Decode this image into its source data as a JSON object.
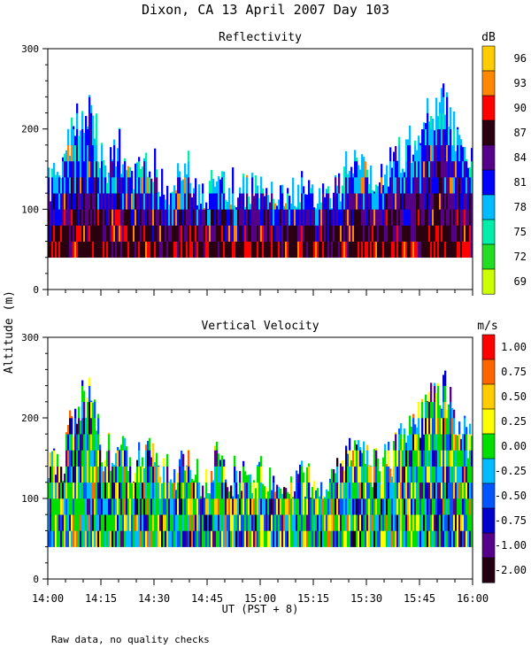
{
  "title": "Dixon, CA 13 April 2007  Day 103",
  "ylabel": "Altitude (m)",
  "xlabel": "UT  (PST + 8)",
  "footnote": "Raw data, no quality checks",
  "x_ticks": [
    "14:00",
    "14:15",
    "14:30",
    "14:45",
    "15:00",
    "15:15",
    "15:30",
    "15:45",
    "16:00"
  ],
  "chart_data": [
    {
      "type": "heatmap",
      "title": "Reflectivity",
      "colorbar_unit": "dB",
      "colorbar_labels": [
        "96",
        "93",
        "90",
        "87",
        "84",
        "81",
        "78",
        "75",
        "72",
        "69"
      ],
      "colorbar_colors": [
        "#ffcc00",
        "#ff8800",
        "#ff0000",
        "#2a0010",
        "#550088",
        "#0000ff",
        "#00bbff",
        "#00eeaa",
        "#22dd22",
        "#ccff00"
      ],
      "ylim": [
        0,
        300
      ],
      "y_ticks": [
        "300",
        "200",
        "100",
        "0"
      ],
      "xlim": [
        "14:00",
        "16:00"
      ],
      "echo_base_m": 40,
      "echo_top_profile_m": [
        140,
        160,
        230,
        240,
        160,
        190,
        140,
        180,
        150,
        140,
        160,
        120,
        160,
        140,
        130,
        140,
        120,
        120,
        140,
        120,
        120,
        160,
        180,
        150,
        160,
        180,
        200,
        230,
        250,
        200,
        180
      ]
    },
    {
      "type": "heatmap",
      "title": "Vertical Velocity",
      "colorbar_unit": "m/s",
      "colorbar_labels": [
        "1.00",
        "0.75",
        "0.50",
        "0.25",
        "0.00",
        "-0.25",
        "-0.50",
        "-0.75",
        "-1.00",
        "-2.00"
      ],
      "colorbar_colors": [
        "#ff0000",
        "#ff6600",
        "#ffcc00",
        "#ffff00",
        "#00dd00",
        "#00bbff",
        "#0055ff",
        "#0000cc",
        "#550088",
        "#220011"
      ],
      "ylim": [
        0,
        300
      ],
      "y_ticks": [
        "300",
        "200",
        "100",
        "0"
      ],
      "xlim": [
        "14:00",
        "16:00"
      ],
      "echo_base_m": 40,
      "echo_top_profile_m": [
        140,
        160,
        230,
        240,
        160,
        190,
        140,
        180,
        150,
        140,
        160,
        120,
        160,
        140,
        130,
        140,
        120,
        120,
        140,
        120,
        120,
        160,
        180,
        150,
        160,
        180,
        200,
        230,
        250,
        200,
        180
      ]
    }
  ]
}
